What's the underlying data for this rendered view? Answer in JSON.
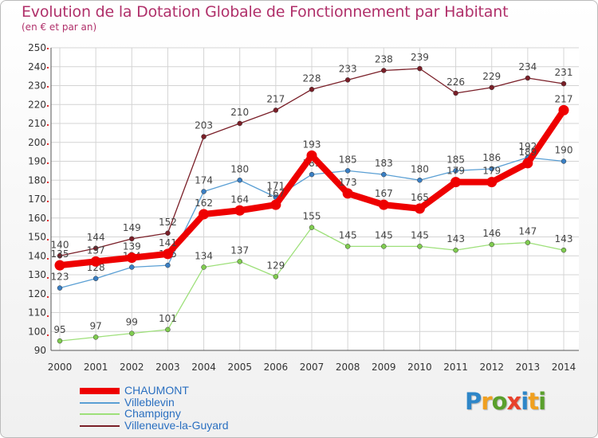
{
  "title": "Evolution de la Dotation Globale de Fonctionnement par Habitant",
  "subtitle": "(en € et par an)",
  "logo": {
    "letters": [
      "P",
      "r",
      "o",
      "x",
      "i",
      "t",
      "i"
    ],
    "colors": [
      "#2e86c8",
      "#f0a020",
      "#5aa02c",
      "#e8412c",
      "#2e86c8",
      "#f0a020",
      "#5aa02c"
    ]
  },
  "chart_data": {
    "type": "line",
    "title": "Evolution de la Dotation Globale de Fonctionnement par Habitant",
    "subtitle": "(en € et par an)",
    "xlabel": "",
    "ylabel": "",
    "ylim": [
      90,
      250
    ],
    "yticks": [
      90,
      100,
      110,
      120,
      130,
      140,
      150,
      160,
      170,
      180,
      190,
      200,
      210,
      220,
      230,
      240,
      250
    ],
    "grid": true,
    "legend_position": "bottom-left",
    "x": [
      "2000",
      "2001",
      "2002",
      "2003",
      "2004",
      "2005",
      "2006",
      "2007",
      "2008",
      "2009",
      "2010",
      "2011",
      "2012",
      "2013",
      "2014"
    ],
    "series": [
      {
        "name": "Villeneuve-la-Guyard",
        "color": "#7a1f28",
        "marker": "#7a1f28",
        "values": [
          140,
          144,
          149,
          152,
          203,
          210,
          217,
          228,
          233,
          238,
          239,
          226,
          229,
          234,
          231
        ]
      },
      {
        "name": "Champigny",
        "color": "#9ee07a",
        "marker": "#80cc50",
        "values": [
          95,
          97,
          99,
          101,
          134,
          137,
          129,
          155,
          145,
          145,
          145,
          143,
          146,
          147,
          143
        ]
      },
      {
        "name": "Villeblevin",
        "color": "#5a9fd4",
        "marker": "#3a7fc4",
        "values": [
          123,
          128,
          134,
          135,
          174,
          180,
          171,
          183,
          185,
          183,
          180,
          185,
          186,
          192,
          190
        ]
      },
      {
        "name": "CHAUMONT",
        "color": "#ee0000",
        "marker": "#ee0000",
        "values": [
          135,
          137,
          139,
          141,
          162,
          164,
          167,
          193,
          173,
          167,
          165,
          179,
          179,
          189,
          217
        ]
      }
    ]
  }
}
